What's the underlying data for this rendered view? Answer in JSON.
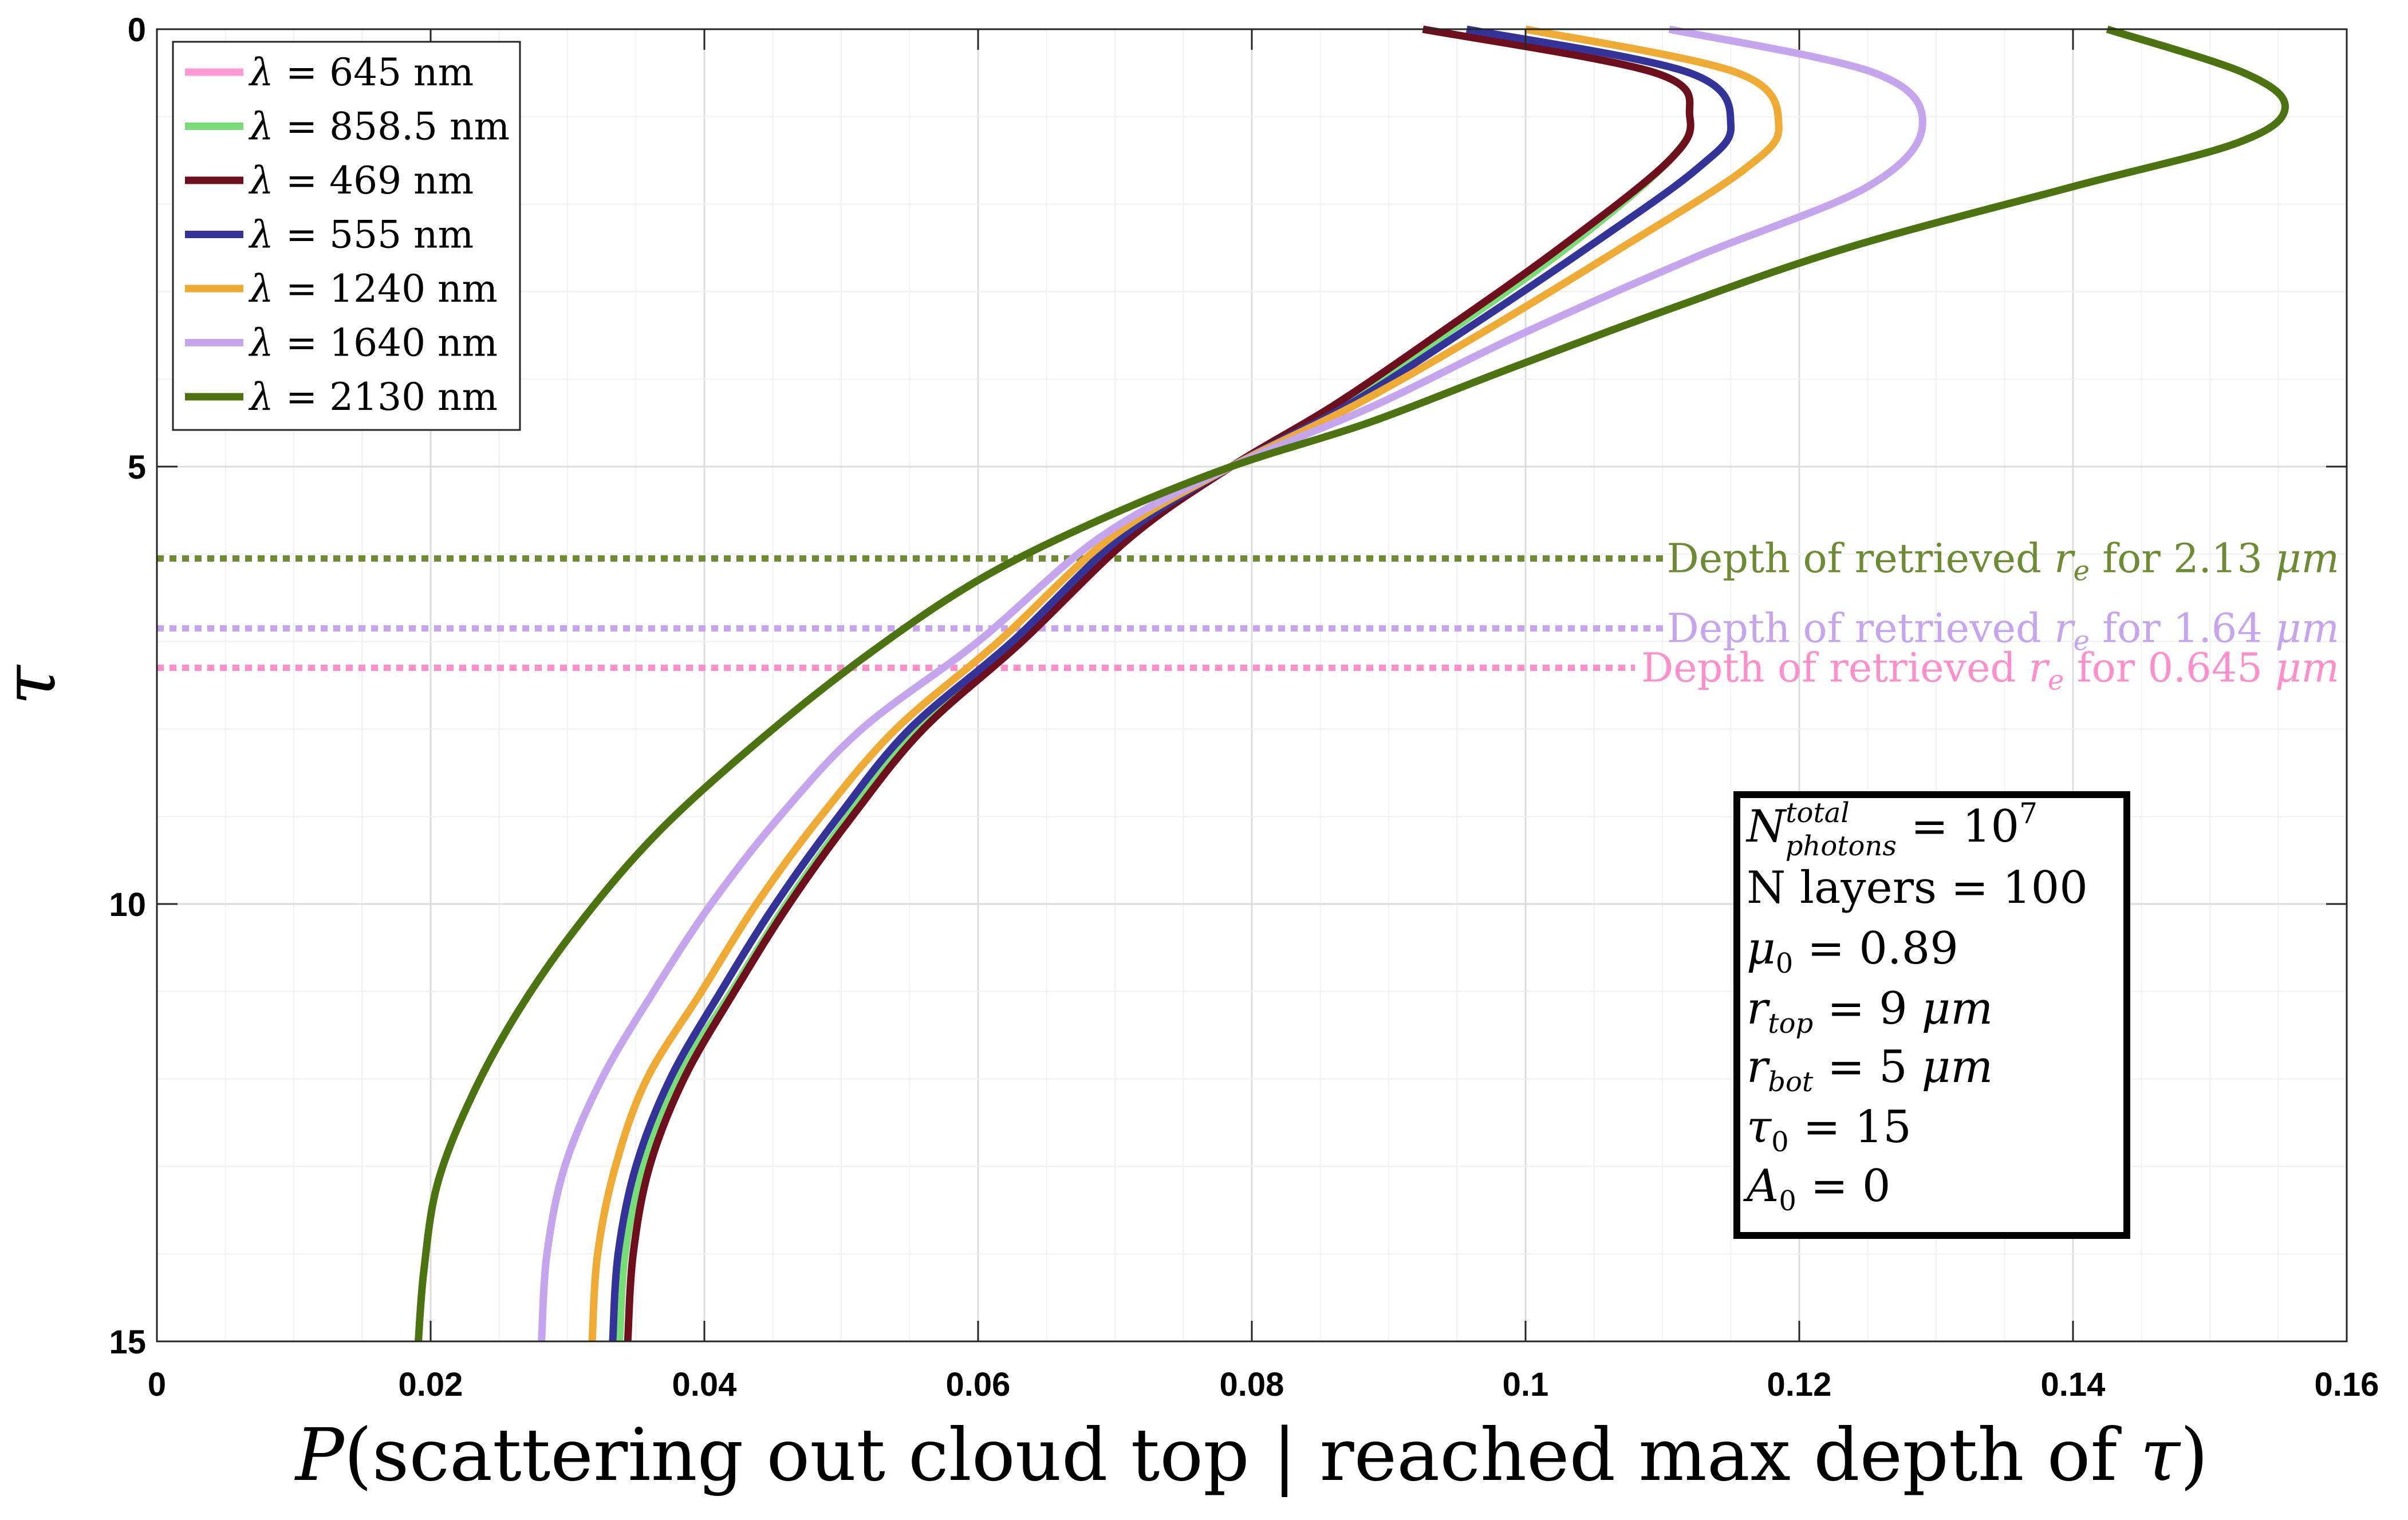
{
  "chart_data": {
    "type": "line",
    "xlabel": "P(scattering out cloud top | reached max depth of τ)",
    "ylabel": "τ",
    "xlim": [
      0,
      0.16
    ],
    "ylim": [
      15,
      0
    ],
    "y_reversed": true,
    "grid": true,
    "x_ticks": [
      0,
      0.02,
      0.04,
      0.06,
      0.08,
      0.1,
      0.12,
      0.14,
      0.16
    ],
    "x_tick_labels": [
      "0",
      "0.02",
      "0.04",
      "0.06",
      "0.08",
      "0.1",
      "0.12",
      "0.14",
      "0.16"
    ],
    "y_ticks": [
      0,
      5,
      10,
      15
    ],
    "y_tick_labels": [
      "0",
      "5",
      "10",
      "15"
    ],
    "legend_position": "top-left",
    "series": [
      {
        "name": "λ = 645 nm",
        "color": "#FF99D4",
        "points": [
          [
            0.0925,
            0
          ],
          [
            0.1095,
            0.5
          ],
          [
            0.112,
            1.0
          ],
          [
            0.1105,
            1.5
          ],
          [
            0.103,
            2.5
          ],
          [
            0.094,
            3.5
          ],
          [
            0.0865,
            4.3
          ],
          [
            0.0785,
            5.0
          ],
          [
            0.071,
            5.8
          ],
          [
            0.063,
            7.0
          ],
          [
            0.0555,
            8.0
          ],
          [
            0.0505,
            9.0
          ],
          [
            0.046,
            10.0
          ],
          [
            0.042,
            11.0
          ],
          [
            0.038,
            12.0
          ],
          [
            0.0355,
            13.0
          ],
          [
            0.0342,
            14.0
          ],
          [
            0.0338,
            15.0
          ]
        ]
      },
      {
        "name": "λ = 858.5 nm",
        "color": "#77DD77",
        "points": [
          [
            0.0925,
            0
          ],
          [
            0.1095,
            0.5
          ],
          [
            0.112,
            1.0
          ],
          [
            0.1105,
            1.5
          ],
          [
            0.103,
            2.5
          ],
          [
            0.094,
            3.5
          ],
          [
            0.0865,
            4.3
          ],
          [
            0.0785,
            5.0
          ],
          [
            0.071,
            5.8
          ],
          [
            0.063,
            7.0
          ],
          [
            0.0555,
            8.0
          ],
          [
            0.0505,
            9.0
          ],
          [
            0.046,
            10.0
          ],
          [
            0.042,
            11.0
          ],
          [
            0.038,
            12.0
          ],
          [
            0.0355,
            13.0
          ],
          [
            0.0342,
            14.0
          ],
          [
            0.0338,
            15.0
          ]
        ]
      },
      {
        "name": "λ = 469 nm",
        "color": "#6E0F1E",
        "points": [
          [
            0.0925,
            0
          ],
          [
            0.1095,
            0.5
          ],
          [
            0.112,
            1.0
          ],
          [
            0.1105,
            1.5
          ],
          [
            0.1025,
            2.5
          ],
          [
            0.0935,
            3.5
          ],
          [
            0.086,
            4.3
          ],
          [
            0.0785,
            5.0
          ],
          [
            0.0712,
            5.8
          ],
          [
            0.0632,
            7.0
          ],
          [
            0.056,
            8.0
          ],
          [
            0.0508,
            9.0
          ],
          [
            0.0462,
            10.0
          ],
          [
            0.0422,
            11.0
          ],
          [
            0.0385,
            12.0
          ],
          [
            0.036,
            13.0
          ],
          [
            0.0348,
            14.0
          ],
          [
            0.0344,
            15.0
          ]
        ]
      },
      {
        "name": "λ = 555 nm",
        "color": "#333399",
        "points": [
          [
            0.0957,
            0
          ],
          [
            0.112,
            0.5
          ],
          [
            0.115,
            1.1
          ],
          [
            0.1125,
            1.6
          ],
          [
            0.1045,
            2.5
          ],
          [
            0.095,
            3.5
          ],
          [
            0.087,
            4.3
          ],
          [
            0.0785,
            5.0
          ],
          [
            0.0705,
            5.8
          ],
          [
            0.0625,
            7.0
          ],
          [
            0.055,
            8.0
          ],
          [
            0.0498,
            9.0
          ],
          [
            0.0452,
            10.0
          ],
          [
            0.0412,
            11.0
          ],
          [
            0.0375,
            12.0
          ],
          [
            0.035,
            13.0
          ],
          [
            0.0337,
            14.0
          ],
          [
            0.0333,
            15.0
          ]
        ]
      },
      {
        "name": "λ = 1240 nm",
        "color": "#EEAA33",
        "points": [
          [
            0.1,
            0
          ],
          [
            0.1155,
            0.5
          ],
          [
            0.1185,
            1.1
          ],
          [
            0.116,
            1.6
          ],
          [
            0.107,
            2.5
          ],
          [
            0.0965,
            3.5
          ],
          [
            0.0875,
            4.3
          ],
          [
            0.0785,
            5.0
          ],
          [
            0.0698,
            5.8
          ],
          [
            0.0615,
            7.0
          ],
          [
            0.054,
            8.0
          ],
          [
            0.0485,
            9.0
          ],
          [
            0.0438,
            10.0
          ],
          [
            0.0398,
            11.0
          ],
          [
            0.0358,
            12.0
          ],
          [
            0.0335,
            13.0
          ],
          [
            0.0322,
            14.0
          ],
          [
            0.0318,
            15.0
          ]
        ]
      },
      {
        "name": "λ = 1640 nm",
        "color": "#C5A6EE",
        "points": [
          [
            0.1105,
            0
          ],
          [
            0.1255,
            0.5
          ],
          [
            0.129,
            1.1
          ],
          [
            0.125,
            1.8
          ],
          [
            0.1125,
            2.6
          ],
          [
            0.0995,
            3.5
          ],
          [
            0.089,
            4.3
          ],
          [
            0.0785,
            5.0
          ],
          [
            0.069,
            5.8
          ],
          [
            0.06,
            7.0
          ],
          [
            0.0515,
            8.0
          ],
          [
            0.0455,
            9.0
          ],
          [
            0.0405,
            10.0
          ],
          [
            0.0363,
            11.0
          ],
          [
            0.0325,
            12.0
          ],
          [
            0.0298,
            13.0
          ],
          [
            0.0285,
            14.0
          ],
          [
            0.0281,
            15.0
          ]
        ]
      },
      {
        "name": "λ = 2130 nm",
        "color": "#4D7310",
        "points": [
          [
            0.1425,
            0
          ],
          [
            0.1525,
            0.5
          ],
          [
            0.1555,
            0.9
          ],
          [
            0.152,
            1.3
          ],
          [
            0.14,
            1.8
          ],
          [
            0.1235,
            2.5
          ],
          [
            0.1105,
            3.2
          ],
          [
            0.0985,
            3.9
          ],
          [
            0.0885,
            4.5
          ],
          [
            0.0785,
            5.0
          ],
          [
            0.069,
            5.6
          ],
          [
            0.06,
            6.3
          ],
          [
            0.0515,
            7.2
          ],
          [
            0.0435,
            8.2
          ],
          [
            0.0365,
            9.2
          ],
          [
            0.031,
            10.2
          ],
          [
            0.0265,
            11.2
          ],
          [
            0.023,
            12.2
          ],
          [
            0.0205,
            13.2
          ],
          [
            0.0195,
            14.2
          ],
          [
            0.0191,
            15.0
          ]
        ]
      }
    ],
    "reference_lines": [
      {
        "tau": 6.05,
        "label": "Depth of retrieved r_e for 2.13 μm",
        "color": "#6E8A33"
      },
      {
        "tau": 6.85,
        "label": "Depth of retrieved r_e for 1.64 μm",
        "color": "#C5A6EE"
      },
      {
        "tau": 7.3,
        "label": "Depth of retrieved r_e for 0.645 μm",
        "color": "#FF8FCB"
      }
    ],
    "info_box": [
      "N_photons^total = 10^7",
      "N layers = 100",
      "μ0 = 0.89",
      "r_top = 9 μm",
      "r_bot = 5 μm",
      "τ0 = 15",
      "A0 = 0"
    ]
  }
}
